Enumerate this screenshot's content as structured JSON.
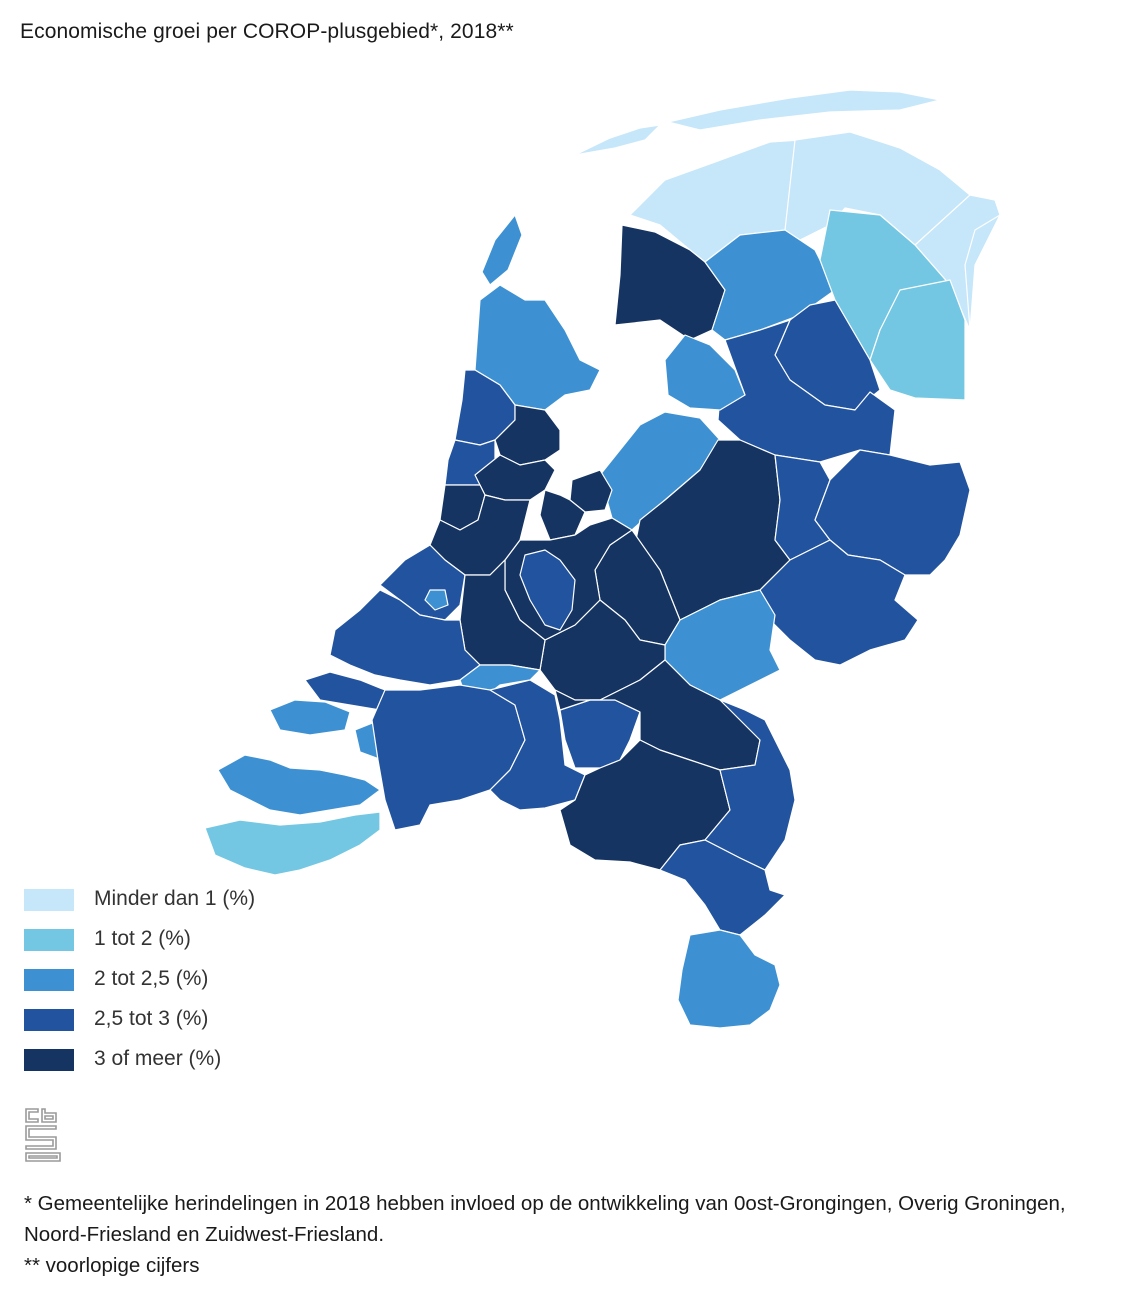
{
  "title": "Economische groei per COROP-plusgebied*, 2018**",
  "colors": {
    "class1": "#c6e6fa",
    "class2": "#74c7e2",
    "class3": "#3d91d2",
    "class4": "#22539e",
    "class5": "#153462",
    "border": "#ffffff"
  },
  "legend": [
    {
      "label": "Minder dan 1 (%)",
      "color": "#c6e6fa"
    },
    {
      "label": "1 tot 2 (%)",
      "color": "#74c7e2"
    },
    {
      "label": "2 tot 2,5 (%)",
      "color": "#3d91d2"
    },
    {
      "label": "2,5 tot 3 (%)",
      "color": "#22539e"
    },
    {
      "label": "3 of meer (%)",
      "color": "#153462"
    }
  ],
  "logo_text": "cbs",
  "footnotes": {
    "note1": "* Gemeentelijke herindelingen in 2018 hebben invloed op de ontwikkeling van 0ost-Grongingen, Overig Groningen, Noord-Friesland en Zuidwest-Friesland.",
    "note2": "** voorlopige cijfers"
  }
}
